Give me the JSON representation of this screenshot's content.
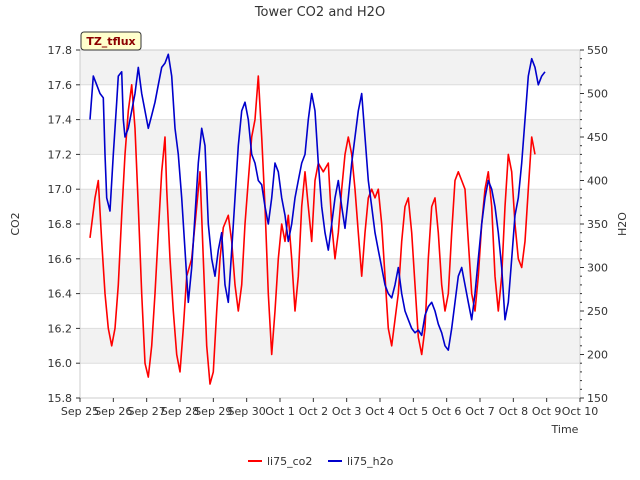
{
  "chart_data": {
    "type": "line",
    "title": "Tower CO2 and H2O",
    "xlabel": "Time",
    "ylabel_left": "CO2",
    "ylabel_right": "H2O",
    "annotation": "TZ_tflux",
    "x_ticks": [
      "Sep 25",
      "Sep 26",
      "Sep 27",
      "Sep 28",
      "Sep 29",
      "Sep 30",
      "Oct 1",
      "Oct 2",
      "Oct 3",
      "Oct 4",
      "Oct 5",
      "Oct 6",
      "Oct 7",
      "Oct 8",
      "Oct 9",
      "Oct 10"
    ],
    "x_range": [
      0,
      15
    ],
    "y_left": {
      "range": [
        15.8,
        17.8
      ],
      "ticks": [
        "15.8",
        "16.0",
        "16.2",
        "16.4",
        "16.6",
        "16.8",
        "17.0",
        "17.2",
        "17.4",
        "17.6",
        "17.8"
      ]
    },
    "y_right": {
      "range": [
        150,
        550
      ],
      "ticks": [
        "150",
        "200",
        "250",
        "300",
        "350",
        "400",
        "450",
        "500",
        "550"
      ]
    },
    "grid": true,
    "legend": "bottom-center",
    "series": [
      {
        "name": "li75_co2",
        "color": "#ff0000",
        "axis": "left",
        "points": [
          [
            0.3,
            16.72
          ],
          [
            0.45,
            16.95
          ],
          [
            0.55,
            17.05
          ],
          [
            0.65,
            16.7
          ],
          [
            0.75,
            16.4
          ],
          [
            0.85,
            16.2
          ],
          [
            0.95,
            16.1
          ],
          [
            1.05,
            16.2
          ],
          [
            1.15,
            16.45
          ],
          [
            1.25,
            16.85
          ],
          [
            1.35,
            17.2
          ],
          [
            1.45,
            17.45
          ],
          [
            1.55,
            17.6
          ],
          [
            1.65,
            17.35
          ],
          [
            1.75,
            16.9
          ],
          [
            1.85,
            16.4
          ],
          [
            1.95,
            16.0
          ],
          [
            2.05,
            15.92
          ],
          [
            2.15,
            16.1
          ],
          [
            2.25,
            16.4
          ],
          [
            2.35,
            16.75
          ],
          [
            2.45,
            17.1
          ],
          [
            2.55,
            17.3
          ],
          [
            2.6,
            17.0
          ],
          [
            2.7,
            16.6
          ],
          [
            2.8,
            16.3
          ],
          [
            2.9,
            16.05
          ],
          [
            3.0,
            15.95
          ],
          [
            3.1,
            16.2
          ],
          [
            3.2,
            16.5
          ],
          [
            3.35,
            16.6
          ],
          [
            3.5,
            16.9
          ],
          [
            3.6,
            17.1
          ],
          [
            3.7,
            16.6
          ],
          [
            3.8,
            16.1
          ],
          [
            3.9,
            15.88
          ],
          [
            4.0,
            15.95
          ],
          [
            4.1,
            16.3
          ],
          [
            4.2,
            16.6
          ],
          [
            4.3,
            16.78
          ],
          [
            4.45,
            16.85
          ],
          [
            4.55,
            16.7
          ],
          [
            4.65,
            16.45
          ],
          [
            4.75,
            16.3
          ],
          [
            4.85,
            16.45
          ],
          [
            4.95,
            16.8
          ],
          [
            5.05,
            17.05
          ],
          [
            5.15,
            17.3
          ],
          [
            5.25,
            17.4
          ],
          [
            5.35,
            17.65
          ],
          [
            5.45,
            17.3
          ],
          [
            5.55,
            16.9
          ],
          [
            5.65,
            16.4
          ],
          [
            5.75,
            16.05
          ],
          [
            5.85,
            16.3
          ],
          [
            5.95,
            16.6
          ],
          [
            6.05,
            16.8
          ],
          [
            6.15,
            16.7
          ],
          [
            6.25,
            16.85
          ],
          [
            6.35,
            16.6
          ],
          [
            6.45,
            16.3
          ],
          [
            6.55,
            16.5
          ],
          [
            6.65,
            16.9
          ],
          [
            6.75,
            17.1
          ],
          [
            6.85,
            16.9
          ],
          [
            6.95,
            16.7
          ],
          [
            7.05,
            17.05
          ],
          [
            7.15,
            17.15
          ],
          [
            7.3,
            17.1
          ],
          [
            7.45,
            17.15
          ],
          [
            7.55,
            16.8
          ],
          [
            7.65,
            16.6
          ],
          [
            7.75,
            16.75
          ],
          [
            7.85,
            17.0
          ],
          [
            7.95,
            17.2
          ],
          [
            8.05,
            17.3
          ],
          [
            8.15,
            17.2
          ],
          [
            8.25,
            17.0
          ],
          [
            8.35,
            16.75
          ],
          [
            8.45,
            16.5
          ],
          [
            8.55,
            16.75
          ],
          [
            8.65,
            16.95
          ],
          [
            8.75,
            17.0
          ],
          [
            8.85,
            16.95
          ],
          [
            8.95,
            17.0
          ],
          [
            9.05,
            16.8
          ],
          [
            9.15,
            16.5
          ],
          [
            9.25,
            16.2
          ],
          [
            9.35,
            16.1
          ],
          [
            9.45,
            16.25
          ],
          [
            9.55,
            16.4
          ],
          [
            9.65,
            16.7
          ],
          [
            9.75,
            16.9
          ],
          [
            9.85,
            16.95
          ],
          [
            9.95,
            16.75
          ],
          [
            10.05,
            16.45
          ],
          [
            10.15,
            16.15
          ],
          [
            10.25,
            16.05
          ],
          [
            10.35,
            16.2
          ],
          [
            10.45,
            16.6
          ],
          [
            10.55,
            16.9
          ],
          [
            10.65,
            16.95
          ],
          [
            10.75,
            16.75
          ],
          [
            10.85,
            16.45
          ],
          [
            10.95,
            16.3
          ],
          [
            11.05,
            16.4
          ],
          [
            11.15,
            16.75
          ],
          [
            11.25,
            17.05
          ],
          [
            11.35,
            17.1
          ],
          [
            11.45,
            17.05
          ],
          [
            11.55,
            17.0
          ],
          [
            11.65,
            16.7
          ],
          [
            11.75,
            16.4
          ],
          [
            11.85,
            16.3
          ],
          [
            11.95,
            16.5
          ],
          [
            12.05,
            16.8
          ],
          [
            12.15,
            17.0
          ],
          [
            12.25,
            17.1
          ],
          [
            12.35,
            16.9
          ],
          [
            12.45,
            16.5
          ],
          [
            12.55,
            16.3
          ],
          [
            12.65,
            16.5
          ],
          [
            12.75,
            16.9
          ],
          [
            12.85,
            17.2
          ],
          [
            12.95,
            17.1
          ],
          [
            13.05,
            16.8
          ],
          [
            13.15,
            16.6
          ],
          [
            13.25,
            16.55
          ],
          [
            13.35,
            16.7
          ],
          [
            13.45,
            17.0
          ],
          [
            13.55,
            17.3
          ],
          [
            13.65,
            17.2
          ]
        ]
      },
      {
        "name": "li75_h2o",
        "color": "#0000cc",
        "axis": "right",
        "points": [
          [
            0.3,
            470
          ],
          [
            0.4,
            520
          ],
          [
            0.5,
            510
          ],
          [
            0.6,
            500
          ],
          [
            0.7,
            495
          ],
          [
            0.75,
            430
          ],
          [
            0.8,
            380
          ],
          [
            0.9,
            365
          ],
          [
            1.0,
            430
          ],
          [
            1.1,
            490
          ],
          [
            1.15,
            520
          ],
          [
            1.25,
            525
          ],
          [
            1.3,
            470
          ],
          [
            1.35,
            450
          ],
          [
            1.45,
            460
          ],
          [
            1.55,
            480
          ],
          [
            1.65,
            500
          ],
          [
            1.75,
            530
          ],
          [
            1.85,
            500
          ],
          [
            1.95,
            480
          ],
          [
            2.05,
            460
          ],
          [
            2.15,
            475
          ],
          [
            2.25,
            490
          ],
          [
            2.35,
            510
          ],
          [
            2.45,
            530
          ],
          [
            2.55,
            535
          ],
          [
            2.65,
            545
          ],
          [
            2.75,
            520
          ],
          [
            2.85,
            460
          ],
          [
            2.95,
            430
          ],
          [
            3.05,
            380
          ],
          [
            3.15,
            320
          ],
          [
            3.25,
            260
          ],
          [
            3.35,
            300
          ],
          [
            3.45,
            360
          ],
          [
            3.55,
            420
          ],
          [
            3.65,
            460
          ],
          [
            3.75,
            440
          ],
          [
            3.85,
            350
          ],
          [
            3.95,
            310
          ],
          [
            4.05,
            290
          ],
          [
            4.15,
            320
          ],
          [
            4.25,
            340
          ],
          [
            4.35,
            280
          ],
          [
            4.45,
            260
          ],
          [
            4.55,
            320
          ],
          [
            4.65,
            380
          ],
          [
            4.75,
            440
          ],
          [
            4.85,
            480
          ],
          [
            4.95,
            490
          ],
          [
            5.05,
            470
          ],
          [
            5.15,
            430
          ],
          [
            5.25,
            420
          ],
          [
            5.35,
            400
          ],
          [
            5.45,
            395
          ],
          [
            5.55,
            370
          ],
          [
            5.65,
            350
          ],
          [
            5.75,
            380
          ],
          [
            5.85,
            420
          ],
          [
            5.95,
            410
          ],
          [
            6.05,
            380
          ],
          [
            6.15,
            360
          ],
          [
            6.25,
            330
          ],
          [
            6.35,
            350
          ],
          [
            6.45,
            380
          ],
          [
            6.55,
            400
          ],
          [
            6.65,
            420
          ],
          [
            6.75,
            430
          ],
          [
            6.85,
            470
          ],
          [
            6.95,
            500
          ],
          [
            7.05,
            480
          ],
          [
            7.15,
            420
          ],
          [
            7.25,
            370
          ],
          [
            7.35,
            340
          ],
          [
            7.45,
            320
          ],
          [
            7.55,
            350
          ],
          [
            7.65,
            380
          ],
          [
            7.75,
            400
          ],
          [
            7.85,
            370
          ],
          [
            7.95,
            345
          ],
          [
            8.05,
            380
          ],
          [
            8.15,
            420
          ],
          [
            8.25,
            450
          ],
          [
            8.35,
            480
          ],
          [
            8.45,
            500
          ],
          [
            8.55,
            450
          ],
          [
            8.65,
            400
          ],
          [
            8.75,
            370
          ],
          [
            8.85,
            340
          ],
          [
            8.95,
            320
          ],
          [
            9.05,
            300
          ],
          [
            9.15,
            280
          ],
          [
            9.25,
            270
          ],
          [
            9.35,
            265
          ],
          [
            9.45,
            280
          ],
          [
            9.55,
            300
          ],
          [
            9.65,
            270
          ],
          [
            9.75,
            250
          ],
          [
            9.85,
            240
          ],
          [
            9.95,
            230
          ],
          [
            10.05,
            225
          ],
          [
            10.15,
            228
          ],
          [
            10.25,
            222
          ],
          [
            10.35,
            245
          ],
          [
            10.45,
            255
          ],
          [
            10.55,
            260
          ],
          [
            10.65,
            250
          ],
          [
            10.75,
            235
          ],
          [
            10.85,
            225
          ],
          [
            10.95,
            210
          ],
          [
            11.05,
            205
          ],
          [
            11.15,
            230
          ],
          [
            11.25,
            260
          ],
          [
            11.35,
            290
          ],
          [
            11.45,
            300
          ],
          [
            11.55,
            280
          ],
          [
            11.65,
            260
          ],
          [
            11.75,
            240
          ],
          [
            11.85,
            270
          ],
          [
            11.95,
            310
          ],
          [
            12.05,
            350
          ],
          [
            12.15,
            380
          ],
          [
            12.25,
            400
          ],
          [
            12.35,
            390
          ],
          [
            12.45,
            370
          ],
          [
            12.55,
            340
          ],
          [
            12.65,
            300
          ],
          [
            12.75,
            240
          ],
          [
            12.85,
            260
          ],
          [
            12.95,
            310
          ],
          [
            13.05,
            360
          ],
          [
            13.15,
            380
          ],
          [
            13.25,
            420
          ],
          [
            13.35,
            470
          ],
          [
            13.45,
            520
          ],
          [
            13.55,
            540
          ],
          [
            13.65,
            530
          ],
          [
            13.75,
            510
          ],
          [
            13.85,
            520
          ],
          [
            13.95,
            525
          ]
        ]
      }
    ]
  }
}
